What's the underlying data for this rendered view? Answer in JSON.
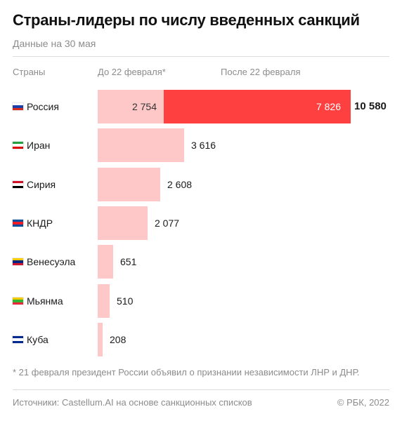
{
  "header": {
    "title": "Страны-лидеры по числу введенных санкций",
    "subtitle": "Данные на 30 мая"
  },
  "chart_data": {
    "type": "bar",
    "orientation": "horizontal",
    "stacked": true,
    "column_headers": {
      "countries": "Страны",
      "before": "До 22 февраля*",
      "after": "После 22 февраля"
    },
    "colors": {
      "before": "#ffc8c8",
      "after": "#ff4040"
    },
    "rows": [
      {
        "country": "Россия",
        "flag": [
          "#ffffff",
          "#1c3fa8",
          "#d52b1e"
        ],
        "before": 2754,
        "after": 7826,
        "total": 10580,
        "before_label": "2 754",
        "after_label": "7 826",
        "total_label": "10 580"
      },
      {
        "country": "Иран",
        "flag": [
          "#239f40",
          "#ffffff",
          "#da0000"
        ],
        "before": 3616,
        "after": null,
        "total": 3616,
        "before_label": "",
        "after_label": "",
        "total_label": "3 616"
      },
      {
        "country": "Сирия",
        "flag": [
          "#ce1126",
          "#ffffff",
          "#000000"
        ],
        "before": 2608,
        "after": null,
        "total": 2608,
        "before_label": "",
        "after_label": "",
        "total_label": "2 608"
      },
      {
        "country": "КНДР",
        "flag": [
          "#024fa2",
          "#ed1c27",
          "#024fa2"
        ],
        "before": 2077,
        "after": null,
        "total": 2077,
        "before_label": "",
        "after_label": "",
        "total_label": "2 077"
      },
      {
        "country": "Венесуэла",
        "flag": [
          "#ffcc00",
          "#00247d",
          "#cf142b"
        ],
        "before": 651,
        "after": null,
        "total": 651,
        "before_label": "",
        "after_label": "",
        "total_label": "651"
      },
      {
        "country": "Мьянма",
        "flag": [
          "#fecb00",
          "#34b233",
          "#ea2839"
        ],
        "before": 510,
        "after": null,
        "total": 510,
        "before_label": "",
        "after_label": "",
        "total_label": "510"
      },
      {
        "country": "Куба",
        "flag": [
          "#002a8f",
          "#ffffff",
          "#002a8f"
        ],
        "before": 208,
        "after": null,
        "total": 208,
        "before_label": "",
        "after_label": "",
        "total_label": "208"
      }
    ]
  },
  "footer": {
    "footnote": "* 21 февраля президент России объявил о признании независимости ЛНР и ДНР.",
    "source": "Источники: Castellum.AI на основе санкционных списков",
    "copyright": "© РБК, 2022"
  }
}
